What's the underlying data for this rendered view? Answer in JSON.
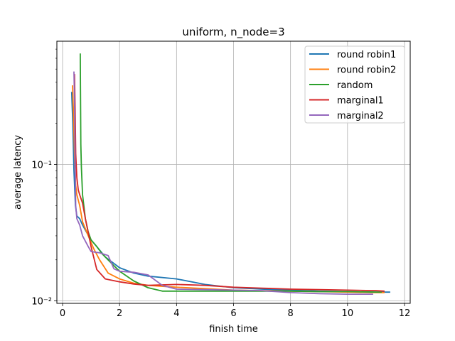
{
  "chart_data": {
    "type": "line",
    "title": "uniform, n_node=3",
    "xlabel": "finish time",
    "ylabel": "average latency",
    "xlim": [
      -0.2,
      12.2
    ],
    "ylim": [
      0.0096,
      0.8
    ],
    "yscale": "log",
    "grid": true,
    "legend_position": "top-right",
    "x_ticks": [
      0,
      2,
      4,
      6,
      8,
      10,
      12
    ],
    "x_tick_labels": [
      "0",
      "2",
      "4",
      "6",
      "8",
      "10",
      "12"
    ],
    "y_ticks": [
      0.01,
      0.1
    ],
    "y_tick_labels": [
      "10⁻²",
      "10⁻¹"
    ],
    "series": [
      {
        "name": "round robin1",
        "color": "#1f77b4",
        "x": [
          0.32,
          0.36,
          0.4,
          0.45,
          0.5,
          0.55,
          0.6,
          0.7,
          0.8,
          1.0,
          1.2,
          1.5,
          2.0,
          2.5,
          3.0,
          4.0,
          5.0,
          6.0,
          7.0,
          8.0,
          9.0,
          10.0,
          11.0,
          11.5
        ],
        "y": [
          0.34,
          0.2,
          0.09,
          0.05,
          0.042,
          0.041,
          0.04,
          0.036,
          0.033,
          0.028,
          0.025,
          0.021,
          0.0175,
          0.016,
          0.0152,
          0.0145,
          0.0132,
          0.0125,
          0.0122,
          0.012,
          0.0118,
          0.0117,
          0.0116,
          0.0116
        ]
      },
      {
        "name": "round robin2",
        "color": "#ff7f0e",
        "x": [
          0.35,
          0.38,
          0.42,
          0.46,
          0.5,
          0.6,
          0.7,
          0.9,
          1.1,
          1.3,
          1.6,
          2.0,
          2.5,
          3.0,
          4.0,
          5.0,
          6.0,
          7.0,
          8.0,
          9.0,
          10.0,
          11.0,
          11.3
        ],
        "y": [
          0.38,
          0.25,
          0.12,
          0.07,
          0.06,
          0.05,
          0.038,
          0.03,
          0.024,
          0.02,
          0.016,
          0.0145,
          0.0135,
          0.013,
          0.0126,
          0.0123,
          0.012,
          0.0119,
          0.0118,
          0.0117,
          0.0116,
          0.0115,
          0.0115
        ]
      },
      {
        "name": "random",
        "color": "#2ca02c",
        "x": [
          0.62,
          0.63,
          0.64,
          0.66,
          0.7,
          0.8,
          0.9,
          1.0,
          1.2,
          1.4,
          1.7,
          2.0,
          2.5,
          3.0,
          3.5,
          4.0,
          5.0,
          6.0,
          7.0,
          8.0,
          9.0,
          10.0,
          11.0,
          11.2
        ],
        "y": [
          0.65,
          0.3,
          0.14,
          0.095,
          0.06,
          0.04,
          0.032,
          0.028,
          0.025,
          0.022,
          0.019,
          0.0165,
          0.014,
          0.0125,
          0.0118,
          0.0118,
          0.0118,
          0.0118,
          0.0118,
          0.0118,
          0.0117,
          0.0117,
          0.0116,
          0.0116
        ]
      },
      {
        "name": "marginal1",
        "color": "#d62728",
        "x": [
          0.42,
          0.44,
          0.46,
          0.5,
          0.55,
          0.6,
          0.7,
          0.8,
          1.0,
          1.2,
          1.5,
          2.0,
          2.5,
          3.0,
          4.0,
          5.0,
          6.0,
          7.0,
          8.0,
          9.0,
          10.0,
          11.0,
          11.3
        ],
        "y": [
          0.46,
          0.25,
          0.12,
          0.08,
          0.065,
          0.06,
          0.052,
          0.04,
          0.025,
          0.017,
          0.0145,
          0.0138,
          0.0133,
          0.013,
          0.0132,
          0.013,
          0.0126,
          0.0124,
          0.0122,
          0.0121,
          0.012,
          0.0119,
          0.0118
        ]
      },
      {
        "name": "marginal2",
        "color": "#9467bd",
        "x": [
          0.4,
          0.42,
          0.44,
          0.46,
          0.5,
          0.55,
          0.6,
          0.7,
          0.9,
          1.0,
          1.3,
          1.6,
          1.8,
          2.0,
          2.5,
          3.0,
          3.5,
          4.0,
          5.0,
          6.0,
          7.0,
          8.0,
          9.0,
          10.0,
          10.9
        ],
        "y": [
          0.48,
          0.3,
          0.1,
          0.05,
          0.04,
          0.038,
          0.036,
          0.03,
          0.025,
          0.023,
          0.0225,
          0.0215,
          0.0172,
          0.0165,
          0.0162,
          0.0155,
          0.013,
          0.0122,
          0.0121,
          0.012,
          0.0119,
          0.0115,
          0.0113,
          0.0112,
          0.0112
        ]
      }
    ]
  }
}
